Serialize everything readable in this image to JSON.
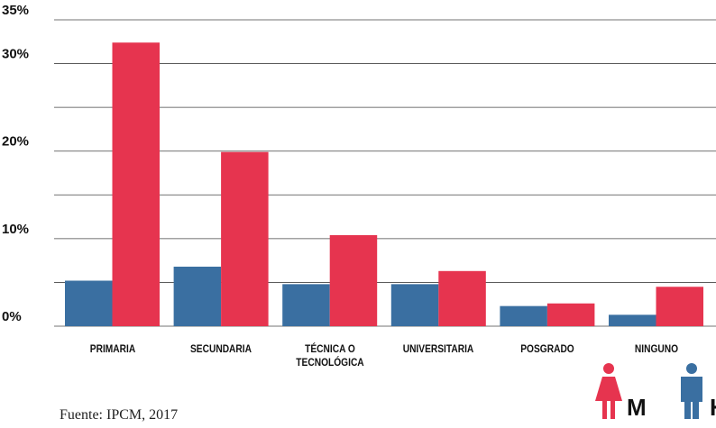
{
  "chart_data": {
    "type": "bar",
    "categories": [
      "PRIMARIA",
      "SECUNDARIA",
      "TÉCNICA O TECNOLÓGICA",
      "UNIVERSITARIA",
      "POSGRADO",
      "NINGUNO"
    ],
    "series": [
      {
        "name": "H",
        "color": "#3a6fa1",
        "values": [
          5.2,
          6.8,
          4.8,
          4.8,
          2.3,
          1.3
        ]
      },
      {
        "name": "M",
        "color": "#e6344f",
        "values": [
          32.4,
          19.9,
          10.4,
          6.3,
          2.6,
          4.5
        ]
      }
    ],
    "ylim": [
      0,
      35
    ],
    "yticks": [
      {
        "value": 0,
        "label": "0%"
      },
      {
        "value": 10,
        "label": "10%"
      },
      {
        "value": 20,
        "label": "20%"
      },
      {
        "value": 30,
        "label": "30%"
      },
      {
        "value": 35,
        "label": "35%"
      }
    ],
    "minor_grid": [
      5,
      15,
      25
    ],
    "grid": true,
    "source": "Fuente: IPCM, 2017"
  }
}
